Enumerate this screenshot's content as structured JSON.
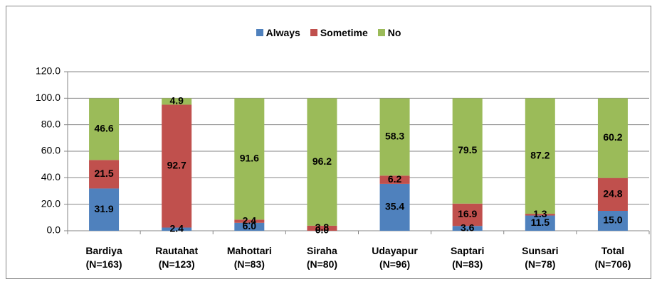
{
  "chart_data": {
    "type": "stacked_bar",
    "categories": [
      "Bardiya\n(N=163)",
      "Rautahat\n(N=123)",
      "Mahottari\n(N=83)",
      "Siraha\n(N=80)",
      "Udayapur\n(N=96)",
      "Saptari\n(N=83)",
      "Sunsari\n(N=78)",
      "Total\n(N=706)"
    ],
    "series": [
      {
        "name": "Always",
        "color": "#4f81bd",
        "values": [
          31.9,
          2.4,
          6.0,
          0.0,
          35.4,
          3.6,
          11.5,
          15.0
        ],
        "value_labels": [
          "31.9",
          "2.4",
          "6.0",
          "0.0",
          "35.4",
          "3.6",
          "11.5",
          "15.0"
        ]
      },
      {
        "name": "Sometime",
        "color": "#c0504d",
        "values": [
          21.5,
          92.7,
          2.4,
          3.8,
          6.2,
          16.9,
          1.3,
          24.8
        ],
        "value_labels": [
          "21.5",
          "92.7",
          "2.4",
          "3.8",
          "6.2",
          "16.9",
          "1.3",
          "24.8"
        ]
      },
      {
        "name": "No",
        "color": "#9bbb59",
        "values": [
          46.6,
          4.9,
          91.6,
          96.2,
          58.3,
          79.5,
          87.2,
          60.2
        ],
        "value_labels": [
          "46.6",
          "4.9",
          "91.6",
          "96.2",
          "58.3",
          "79.5",
          "87.2",
          "60.2"
        ]
      }
    ],
    "ylim": [
      0,
      120
    ],
    "yticks": [
      {
        "value": 0,
        "label": "0.0"
      },
      {
        "value": 20,
        "label": "20.0"
      },
      {
        "value": 40,
        "label": "40.0"
      },
      {
        "value": 60,
        "label": "60.0"
      },
      {
        "value": 80,
        "label": "80.0"
      },
      {
        "value": 100,
        "label": "100.0"
      },
      {
        "value": 120,
        "label": "120.0"
      }
    ],
    "grid": true,
    "legend": "top"
  }
}
